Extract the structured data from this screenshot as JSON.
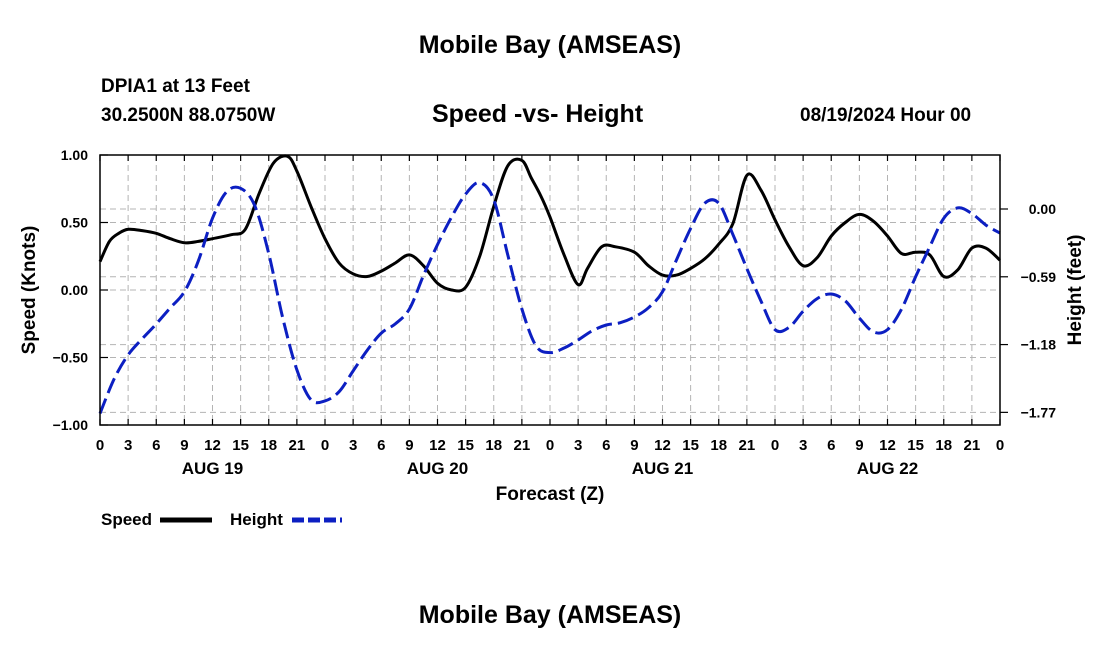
{
  "page": {
    "top_title": "Mobile Bay (AMSEAS)",
    "bottom_title": "Mobile Bay (AMSEAS)",
    "station": "DPIA1 at 13 Feet",
    "coordinates": "30.2500N  88.0750W",
    "subtitle": "Speed -vs- Height",
    "datetime": "08/19/2024 Hour 00"
  },
  "colors": {
    "speed": "#000000",
    "height": "#0c1fc2",
    "grid": "#b4b4b4"
  },
  "chart_data": {
    "type": "line",
    "title": "Speed -vs- Height",
    "xlabel": "Forecast (Z)",
    "ylabel": "Speed (Knots)",
    "ylabel_right": "Height (feet)",
    "x_range_hours": [
      0,
      96
    ],
    "ylim": [
      -1.0,
      1.0
    ],
    "ylim_right": [
      -1.88,
      0.47
    ],
    "grid": true,
    "y_ticks": [
      1.0,
      0.5,
      0.0,
      -0.5,
      -1.0
    ],
    "y_tick_labels": [
      "1.00",
      "0.50",
      "0.00",
      "−0.50",
      "−1.00"
    ],
    "y_right_ticks": [
      0.0,
      -0.59,
      -1.18,
      -1.77
    ],
    "y_right_tick_labels": [
      "0.00",
      "−0.59",
      "−1.18",
      "−1.77"
    ],
    "x_ticks": [
      0,
      3,
      6,
      9,
      12,
      15,
      18,
      21,
      24,
      27,
      30,
      33,
      36,
      39,
      42,
      45,
      48,
      51,
      54,
      57,
      60,
      63,
      66,
      69,
      72,
      75,
      78,
      81,
      84,
      87,
      90,
      93,
      96
    ],
    "x_tick_labels": [
      "0",
      "3",
      "6",
      "9",
      "12",
      "15",
      "18",
      "21",
      "0",
      "3",
      "6",
      "9",
      "12",
      "15",
      "18",
      "21",
      "0",
      "3",
      "6",
      "9",
      "12",
      "15",
      "18",
      "21",
      "0",
      "3",
      "6",
      "9",
      "12",
      "15",
      "18",
      "21",
      "0"
    ],
    "date_labels": [
      {
        "hour": 12,
        "label": "AUG 19"
      },
      {
        "hour": 36,
        "label": "AUG 20"
      },
      {
        "hour": 60,
        "label": "AUG 21"
      },
      {
        "hour": 84,
        "label": "AUG 22"
      }
    ],
    "legend": {
      "placement": "bottom-left",
      "speed_label": "Speed",
      "height_label": "Height"
    },
    "series": [
      {
        "name": "Speed",
        "axis": "left",
        "style": "solid",
        "x": [
          0,
          1,
          2,
          3,
          4.5,
          6,
          7.5,
          9,
          10.5,
          12,
          14,
          15.5,
          17,
          18.5,
          20,
          21,
          22.5,
          24,
          25.5,
          27,
          28.5,
          30,
          31.5,
          33,
          34.5,
          36,
          37.5,
          39,
          40.5,
          42,
          43.5,
          45,
          46,
          47,
          48,
          49.5,
          51,
          52,
          53.5,
          55,
          57,
          58.5,
          60,
          61.5,
          63,
          64.5,
          66,
          67.5,
          69,
          70.5,
          72,
          73.5,
          75,
          76.5,
          78,
          79.5,
          81,
          82.5,
          84,
          85.5,
          87,
          88.5,
          90,
          91.5,
          93,
          94.5,
          96
        ],
        "values": [
          0.21,
          0.36,
          0.42,
          0.45,
          0.44,
          0.42,
          0.38,
          0.35,
          0.36,
          0.38,
          0.41,
          0.45,
          0.72,
          0.94,
          0.99,
          0.88,
          0.62,
          0.38,
          0.2,
          0.12,
          0.1,
          0.14,
          0.2,
          0.26,
          0.18,
          0.05,
          0.0,
          0.02,
          0.25,
          0.62,
          0.92,
          0.96,
          0.83,
          0.7,
          0.54,
          0.26,
          0.04,
          0.16,
          0.32,
          0.32,
          0.28,
          0.18,
          0.11,
          0.11,
          0.16,
          0.23,
          0.34,
          0.49,
          0.85,
          0.74,
          0.52,
          0.32,
          0.18,
          0.24,
          0.4,
          0.5,
          0.56,
          0.51,
          0.4,
          0.27,
          0.28,
          0.26,
          0.1,
          0.15,
          0.31,
          0.31,
          0.22
        ]
      },
      {
        "name": "Height",
        "axis": "right",
        "style": "dashed",
        "x": [
          0,
          1.5,
          3,
          4.5,
          6,
          7.5,
          9,
          10.5,
          12,
          13.5,
          15,
          16.5,
          18,
          19.5,
          21,
          22.5,
          24,
          25.5,
          27,
          28.5,
          30,
          31.5,
          33,
          34.5,
          36,
          37.5,
          39,
          40.5,
          42,
          43.5,
          45,
          46.5,
          48,
          49.5,
          51,
          52.5,
          54,
          55.5,
          57,
          58.5,
          60,
          61.5,
          63,
          64.5,
          66,
          67.5,
          69,
          70.5,
          72,
          73.5,
          75,
          76.5,
          78,
          79.5,
          81,
          82.5,
          84,
          85.5,
          87,
          88.5,
          90,
          91.5,
          93,
          94.5,
          96
        ],
        "values": [
          -1.78,
          -1.48,
          -1.27,
          -1.13,
          -1.0,
          -0.86,
          -0.72,
          -0.45,
          -0.08,
          0.15,
          0.18,
          0.03,
          -0.39,
          -0.95,
          -1.4,
          -1.66,
          -1.67,
          -1.59,
          -1.41,
          -1.23,
          -1.08,
          -1.0,
          -0.87,
          -0.58,
          -0.31,
          -0.07,
          0.13,
          0.23,
          0.08,
          -0.4,
          -0.87,
          -1.19,
          -1.25,
          -1.21,
          -1.14,
          -1.06,
          -1.01,
          -0.99,
          -0.94,
          -0.86,
          -0.72,
          -0.44,
          -0.17,
          0.05,
          0.05,
          -0.22,
          -0.52,
          -0.8,
          -1.05,
          -1.03,
          -0.89,
          -0.78,
          -0.74,
          -0.8,
          -0.95,
          -1.07,
          -1.05,
          -0.87,
          -0.59,
          -0.33,
          -0.08,
          0.01,
          -0.04,
          -0.14,
          -0.21
        ]
      }
    ]
  }
}
